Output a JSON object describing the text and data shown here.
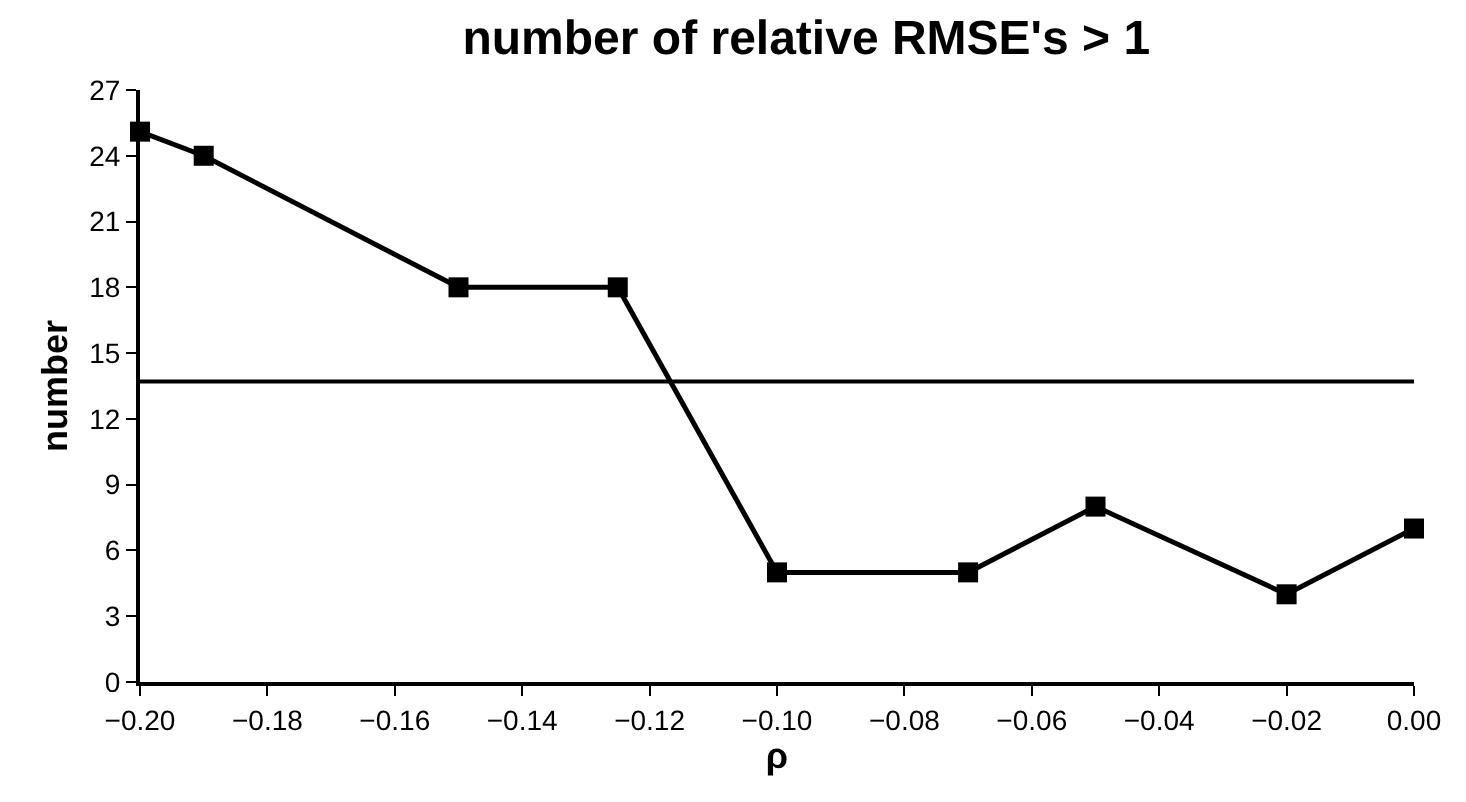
{
  "chart_data": {
    "type": "line",
    "title": "number of relative RMSE's > 1",
    "xlabel": "ρ",
    "ylabel": "number",
    "x": [
      -0.2,
      -0.19,
      -0.15,
      -0.125,
      -0.1,
      -0.07,
      -0.05,
      -0.02,
      0.0
    ],
    "series": [
      {
        "color": "#000000",
        "values": [
          25.1,
          24,
          18,
          18,
          5,
          5,
          8,
          4,
          7
        ]
      }
    ],
    "marker": "square",
    "line_style": "solid",
    "grid": false,
    "legend": false,
    "xlim": [
      -0.2,
      0.0
    ],
    "xticks": [
      {
        "value": -0.2,
        "label": "−0.20"
      },
      {
        "value": -0.18,
        "label": "−0.18"
      },
      {
        "value": -0.16,
        "label": "−0.16"
      },
      {
        "value": -0.14,
        "label": "−0.14"
      },
      {
        "value": -0.12,
        "label": "−0.12"
      },
      {
        "value": -0.1,
        "label": "−0.10"
      },
      {
        "value": -0.08,
        "label": "−0.08"
      },
      {
        "value": -0.06,
        "label": "−0.06"
      },
      {
        "value": -0.04,
        "label": "−0.04"
      },
      {
        "value": -0.02,
        "label": "−0.02"
      },
      {
        "value": 0.0,
        "label": "0.00"
      }
    ],
    "ylim": [
      0,
      27
    ],
    "yticks": [
      0,
      3,
      6,
      9,
      12,
      15,
      18,
      21,
      24,
      27
    ],
    "ref_lines": [
      {
        "axis": "y",
        "value": 13.7,
        "color": "#000000",
        "line_style": "solid"
      }
    ]
  }
}
